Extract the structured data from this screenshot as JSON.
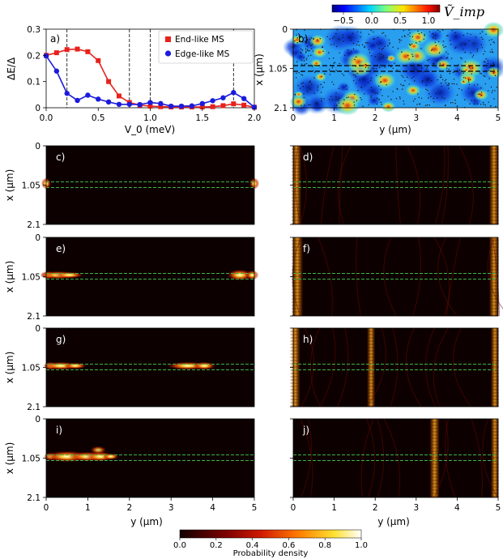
{
  "chart_data": [
    {
      "type": "line",
      "panel": "a)",
      "xlabel": "V_0 (meV)",
      "ylabel": "ΔE/Δ",
      "xlim": [
        0,
        2.0
      ],
      "ylim": [
        0,
        0.3
      ],
      "xticks": [
        "0.0",
        "0.5",
        "1.0",
        "1.5",
        "2.0"
      ],
      "yticks": [
        "0",
        "0.1",
        "0.2",
        "0.3"
      ],
      "vlines": [
        0.2,
        0.8,
        1.0,
        1.8
      ],
      "legend_position": "top-right",
      "series": [
        {
          "name": "End-like MS",
          "color": "#e8211c",
          "marker": "square",
          "x": [
            0.0,
            0.1,
            0.2,
            0.3,
            0.4,
            0.5,
            0.6,
            0.7,
            0.8,
            0.9,
            1.0,
            1.1,
            1.2,
            1.3,
            1.4,
            1.5,
            1.6,
            1.7,
            1.8,
            1.9,
            2.0
          ],
          "y": [
            0.2,
            0.21,
            0.222,
            0.224,
            0.214,
            0.18,
            0.1,
            0.045,
            0.02,
            0.01,
            0.006,
            0.004,
            0.003,
            0.003,
            0.003,
            0.003,
            0.004,
            0.008,
            0.015,
            0.01,
            0.002
          ]
        },
        {
          "name": "Edge-like MS",
          "color": "#1b1bdc",
          "marker": "circle",
          "x": [
            0.0,
            0.1,
            0.2,
            0.3,
            0.4,
            0.5,
            0.6,
            0.7,
            0.8,
            0.9,
            1.0,
            1.1,
            1.2,
            1.3,
            1.4,
            1.5,
            1.6,
            1.7,
            1.8,
            1.9,
            2.0
          ],
          "y": [
            0.198,
            0.14,
            0.055,
            0.028,
            0.048,
            0.033,
            0.022,
            0.013,
            0.013,
            0.012,
            0.02,
            0.016,
            0.006,
            0.006,
            0.007,
            0.016,
            0.027,
            0.038,
            0.058,
            0.035,
            0.002
          ]
        }
      ]
    },
    {
      "type": "heatmap",
      "panel": "b)",
      "title": "Ṽ_imp",
      "xlabel": "y (μm)",
      "ylabel": "x (μm)",
      "colorbar_ticks": [
        "−0.5",
        "0.0",
        "0.5",
        "1.0"
      ],
      "colorbar_range": [
        -0.7,
        1.2
      ],
      "xticks": [
        "0",
        "1",
        "2",
        "3",
        "4",
        "5"
      ],
      "yticks": [
        "0",
        "1.05",
        "2.1"
      ]
    },
    {
      "type": "heatmap",
      "panels": [
        "c)",
        "d)",
        "e)",
        "f)",
        "g)",
        "h)",
        "i)",
        "j)"
      ],
      "xlabel": "y (μm)",
      "ylabel": "x (μm)",
      "xticks": [
        "0",
        "1",
        "2",
        "3",
        "4",
        "5"
      ],
      "yticks": [
        "0",
        "1.05",
        "2.1"
      ],
      "colorbar_label": "Probability density",
      "colorbar_ticks": [
        "0.0",
        "0.2",
        "0.4",
        "0.6",
        "0.8",
        "1.0"
      ],
      "colorbar_range": [
        0,
        1.0
      ]
    }
  ]
}
